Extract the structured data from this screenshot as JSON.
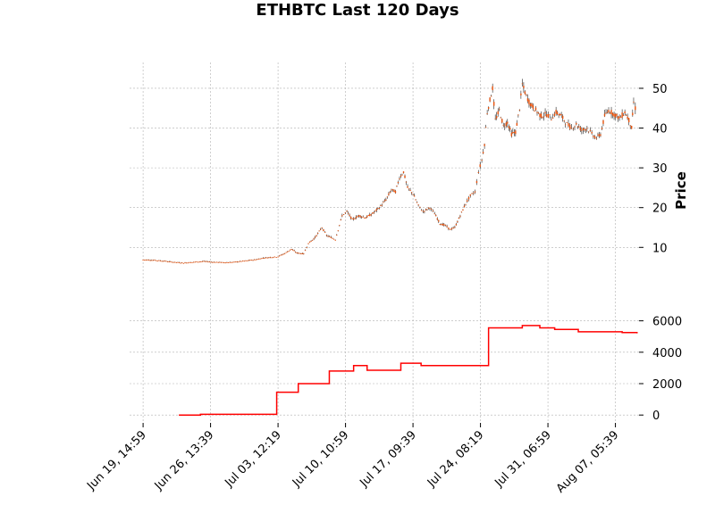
{
  "chart_data": {
    "type": "line",
    "title": "ETHBTC Last 120 Days",
    "xlabel": "",
    "x_ticks": [
      "Jun 19, 14:59",
      "Jun 26, 13:39",
      "Jul 03, 12:19",
      "Jul 10, 10:59",
      "Jul 17, 09:39",
      "Jul 24, 08:19",
      "Jul 31, 06:59",
      "Aug 07, 05:39"
    ],
    "x_range": [
      -0.2,
      7.35
    ],
    "grid": true,
    "panels": [
      {
        "id": "price",
        "ylabel": "Price",
        "ylim": [
          -2.5,
          56.5
        ],
        "yticks": [
          10,
          20,
          30,
          40,
          50
        ],
        "tick_labels": [
          "10",
          "20",
          "30",
          "40",
          "50"
        ],
        "series": [
          {
            "style": "candlestick",
            "color": "#e8520c",
            "wick_color": "#222222",
            "points": [
              [
                0.0,
                6.9
              ],
              [
                0.15,
                6.8
              ],
              [
                0.3,
                6.6
              ],
              [
                0.45,
                6.3
              ],
              [
                0.6,
                6.1
              ],
              [
                0.75,
                6.3
              ],
              [
                0.9,
                6.5
              ],
              [
                1.05,
                6.3
              ],
              [
                1.2,
                6.2
              ],
              [
                1.35,
                6.3
              ],
              [
                1.5,
                6.6
              ],
              [
                1.65,
                6.9
              ],
              [
                1.8,
                7.4
              ],
              [
                1.95,
                7.6
              ],
              [
                2.0,
                7.7
              ],
              [
                2.1,
                8.5
              ],
              [
                2.2,
                9.6
              ],
              [
                2.28,
                8.6
              ],
              [
                2.38,
                8.4
              ],
              [
                2.45,
                11.0
              ],
              [
                2.55,
                12.5
              ],
              [
                2.65,
                15.0
              ],
              [
                2.72,
                13.0
              ],
              [
                2.85,
                12.0
              ],
              [
                2.95,
                18.0
              ],
              [
                3.02,
                19.0
              ],
              [
                3.1,
                17.0
              ],
              [
                3.2,
                18.0
              ],
              [
                3.3,
                17.5
              ],
              [
                3.4,
                18.5
              ],
              [
                3.5,
                20.0
              ],
              [
                3.6,
                22.0
              ],
              [
                3.68,
                24.5
              ],
              [
                3.74,
                24.0
              ],
              [
                3.8,
                27.5
              ],
              [
                3.86,
                29.0
              ],
              [
                3.92,
                25.0
              ],
              [
                4.0,
                23.5
              ],
              [
                4.08,
                20.5
              ],
              [
                4.15,
                19.0
              ],
              [
                4.25,
                20.0
              ],
              [
                4.32,
                18.5
              ],
              [
                4.4,
                16.0
              ],
              [
                4.48,
                15.5
              ],
              [
                4.55,
                14.5
              ],
              [
                4.62,
                15.0
              ],
              [
                4.7,
                18.0
              ],
              [
                4.78,
                21.0
              ],
              [
                4.85,
                23.0
              ],
              [
                4.92,
                24.0
              ],
              [
                4.97,
                29.0
              ],
              [
                5.02,
                32.0
              ],
              [
                5.06,
                36.0
              ],
              [
                5.1,
                44.0
              ],
              [
                5.14,
                47.0
              ],
              [
                5.18,
                50.0
              ],
              [
                5.22,
                42.0
              ],
              [
                5.28,
                44.5
              ],
              [
                5.34,
                40.5
              ],
              [
                5.4,
                41.5
              ],
              [
                5.46,
                38.5
              ],
              [
                5.52,
                39.0
              ],
              [
                5.58,
                45.0
              ],
              [
                5.62,
                51.0
              ],
              [
                5.68,
                48.0
              ],
              [
                5.74,
                46.0
              ],
              [
                5.82,
                44.5
              ],
              [
                5.9,
                43.0
              ],
              [
                5.98,
                43.5
              ],
              [
                6.05,
                42.5
              ],
              [
                6.12,
                44.0
              ],
              [
                6.2,
                43.0
              ],
              [
                6.28,
                41.0
              ],
              [
                6.35,
                40.0
              ],
              [
                6.42,
                41.0
              ],
              [
                6.5,
                39.5
              ],
              [
                6.58,
                40.0
              ],
              [
                6.65,
                38.5
              ],
              [
                6.72,
                37.5
              ],
              [
                6.78,
                38.5
              ],
              [
                6.84,
                43.0
              ],
              [
                6.9,
                44.5
              ],
              [
                6.98,
                43.5
              ],
              [
                7.06,
                42.5
              ],
              [
                7.14,
                44.0
              ],
              [
                7.2,
                42.0
              ],
              [
                7.24,
                40.0
              ],
              [
                7.27,
                46.5
              ],
              [
                7.32,
                43.5
              ]
            ]
          }
        ]
      },
      {
        "id": "volume",
        "ylabel": "",
        "ylim": [
          -500,
          7000
        ],
        "yticks": [
          0,
          2000,
          4000,
          6000
        ],
        "tick_labels": [
          "0",
          "2000",
          "4000",
          "6000"
        ],
        "series": [
          {
            "style": "step",
            "color": "#ff0000",
            "points": [
              [
                0.53,
                0
              ],
              [
                0.85,
                50
              ],
              [
                1.98,
                1450
              ],
              [
                2.3,
                2000
              ],
              [
                2.76,
                2800
              ],
              [
                3.12,
                3150
              ],
              [
                3.32,
                2850
              ],
              [
                3.82,
                3300
              ],
              [
                4.12,
                3150
              ],
              [
                5.12,
                5550
              ],
              [
                5.62,
                5700
              ],
              [
                5.88,
                5550
              ],
              [
                6.1,
                5450
              ],
              [
                6.45,
                5300
              ],
              [
                6.82,
                5300
              ],
              [
                6.98,
                5300
              ],
              [
                7.1,
                5250
              ],
              [
                7.32,
                5200
              ]
            ]
          }
        ]
      }
    ]
  }
}
